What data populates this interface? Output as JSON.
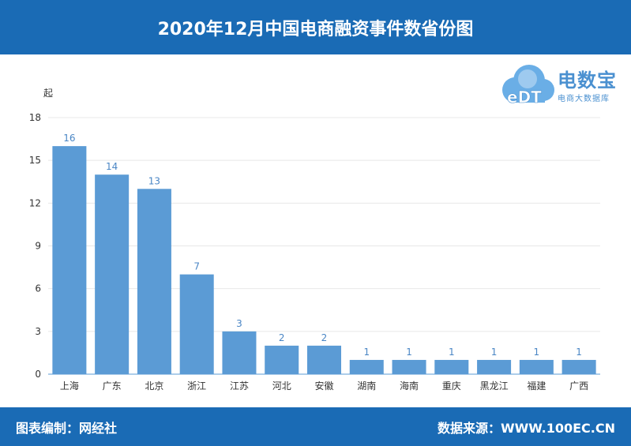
{
  "header": {
    "title": "2020年12月中国电商融资事件数省份图"
  },
  "footer": {
    "left": "图表编制：网经社",
    "right": "数据来源：WWW.100EC.CN"
  },
  "logo": {
    "icon_text": "eDT",
    "name": "电数宝",
    "tagline": "电商大数据库"
  },
  "colors": {
    "header_bg": "#1a6bb5",
    "bar": "#5b9bd5",
    "label": "#4a86c5",
    "axis": "#5b9bd5",
    "grid": "#e8e8e8"
  },
  "chart_data": {
    "type": "bar",
    "ylabel": "起",
    "ylim": [
      0,
      18
    ],
    "yticks": [
      0,
      3,
      6,
      9,
      12,
      15,
      18
    ],
    "grid": true,
    "categories": [
      "上海",
      "广东",
      "北京",
      "浙江",
      "江苏",
      "河北",
      "安徽",
      "湖南",
      "海南",
      "重庆",
      "黑龙江",
      "福建",
      "广西"
    ],
    "values": [
      16,
      14,
      13,
      7,
      3,
      2,
      2,
      1,
      1,
      1,
      1,
      1,
      1
    ]
  }
}
